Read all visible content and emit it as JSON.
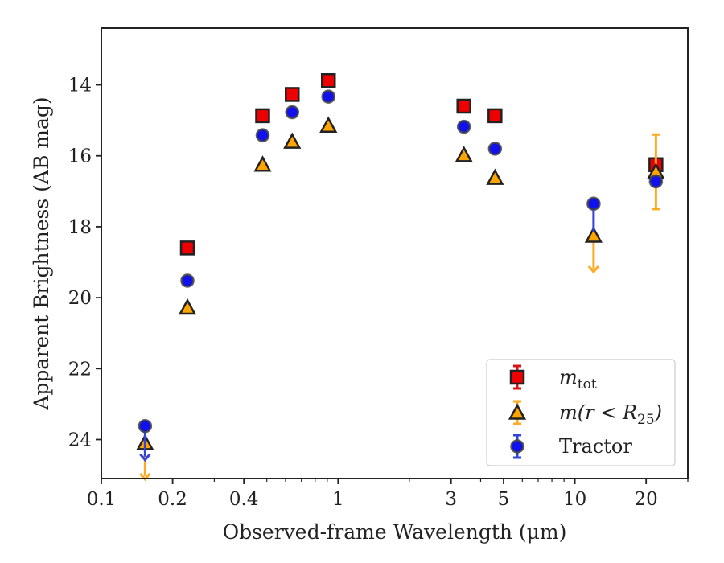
{
  "chart_data": {
    "type": "scatter",
    "title": "",
    "xlabel": "Observed-frame Wavelength (μm)",
    "ylabel": "Apparent Brightness (AB mag)",
    "xscale": "log",
    "xlim": [
      0.1,
      30
    ],
    "ylim": [
      25.1,
      12.4
    ],
    "y_inverted": true,
    "grid": false,
    "legend_position": "bottom-right",
    "x_ticks": [
      {
        "value": 0.1,
        "label": "0.1"
      },
      {
        "value": 0.2,
        "label": "0.2"
      },
      {
        "value": 0.4,
        "label": "0.4"
      },
      {
        "value": 1,
        "label": "1"
      },
      {
        "value": 3,
        "label": "3"
      },
      {
        "value": 5,
        "label": "5"
      },
      {
        "value": 10,
        "label": "10"
      },
      {
        "value": 20,
        "label": "20"
      }
    ],
    "y_ticks": [
      {
        "value": 14,
        "label": "14"
      },
      {
        "value": 16,
        "label": "16"
      },
      {
        "value": 18,
        "label": "18"
      },
      {
        "value": 20,
        "label": "20"
      },
      {
        "value": 22,
        "label": "22"
      },
      {
        "value": 24,
        "label": "24"
      }
    ],
    "series": [
      {
        "key": "mtot",
        "marker": "square",
        "color": "#ee0000",
        "errcolor": "#dd1111",
        "points": [
          {
            "x": 0.231,
            "y": 18.6
          },
          {
            "x": 0.48,
            "y": 14.87
          },
          {
            "x": 0.64,
            "y": 14.27
          },
          {
            "x": 0.91,
            "y": 13.88
          },
          {
            "x": 3.4,
            "y": 14.6
          },
          {
            "x": 4.6,
            "y": 14.87
          },
          {
            "x": 22,
            "y": 16.25,
            "yerr": 0.1
          }
        ]
      },
      {
        "key": "mr25",
        "marker": "triangle",
        "color": "#ffa500",
        "errcolor": "#ffaa22",
        "points": [
          {
            "x": 0.153,
            "y": 24.1,
            "upper_limit": true
          },
          {
            "x": 0.231,
            "y": 20.28
          },
          {
            "x": 0.48,
            "y": 16.25
          },
          {
            "x": 0.64,
            "y": 15.6
          },
          {
            "x": 0.91,
            "y": 15.15
          },
          {
            "x": 3.4,
            "y": 15.98
          },
          {
            "x": 4.6,
            "y": 16.62
          },
          {
            "x": 12,
            "y": 18.25,
            "upper_limit": true
          },
          {
            "x": 22,
            "y": 16.45,
            "yerr": 1.05
          }
        ]
      },
      {
        "key": "tractor",
        "name": "Tractor",
        "marker": "circle",
        "color": "#1111ee",
        "errcolor": "#3344dd",
        "points": [
          {
            "x": 0.153,
            "y": 23.62,
            "upper_limit": true
          },
          {
            "x": 0.231,
            "y": 19.52
          },
          {
            "x": 0.48,
            "y": 15.42
          },
          {
            "x": 0.64,
            "y": 14.77
          },
          {
            "x": 0.91,
            "y": 14.33
          },
          {
            "x": 3.4,
            "y": 15.18
          },
          {
            "x": 4.6,
            "y": 15.8
          },
          {
            "x": 12,
            "y": 17.35,
            "ylow": 18.15
          },
          {
            "x": 22,
            "y": 16.72
          }
        ]
      }
    ],
    "legend": [
      {
        "series": "mtot",
        "label_base": "m",
        "label_sub": "tot"
      },
      {
        "series": "mr25",
        "label_base": "m(r < R",
        "label_sub": "25",
        "label_tail": ")"
      },
      {
        "series": "tractor",
        "label": "Tractor"
      }
    ]
  }
}
